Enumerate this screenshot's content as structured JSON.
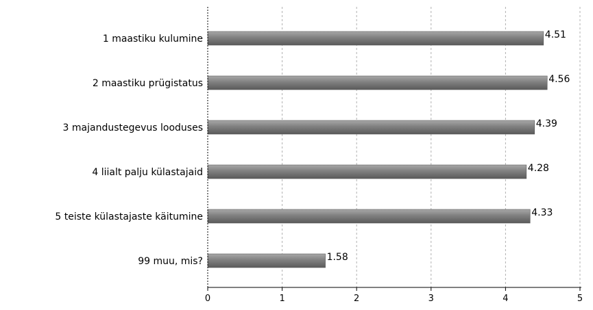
{
  "chart_data": {
    "type": "bar",
    "orientation": "horizontal",
    "categories": [
      "1 maastiku kulumine",
      "2 maastiku prügistatus",
      "3 majandustegevus looduses",
      "4 liialt palju külastajaid",
      "5 teiste külastajaste käitumine",
      "99 muu, mis?"
    ],
    "values": [
      4.51,
      4.56,
      4.39,
      4.28,
      4.33,
      1.58
    ],
    "value_labels": [
      "4.51",
      "4.56",
      "4.39",
      "4.28",
      "4.33",
      "1.58"
    ],
    "xlim": [
      0,
      5
    ],
    "x_ticks": [
      "0",
      "1",
      "2",
      "3",
      "4",
      "5"
    ],
    "grid": "vertical-dashed",
    "title": "",
    "xlabel": "",
    "ylabel": "",
    "colors": {
      "bar": "#808080",
      "bar_highlight": "#a8a8a8",
      "bar_edge": "#5a5a5a",
      "grid": "#b0b0b0",
      "axis": "#000000"
    }
  }
}
